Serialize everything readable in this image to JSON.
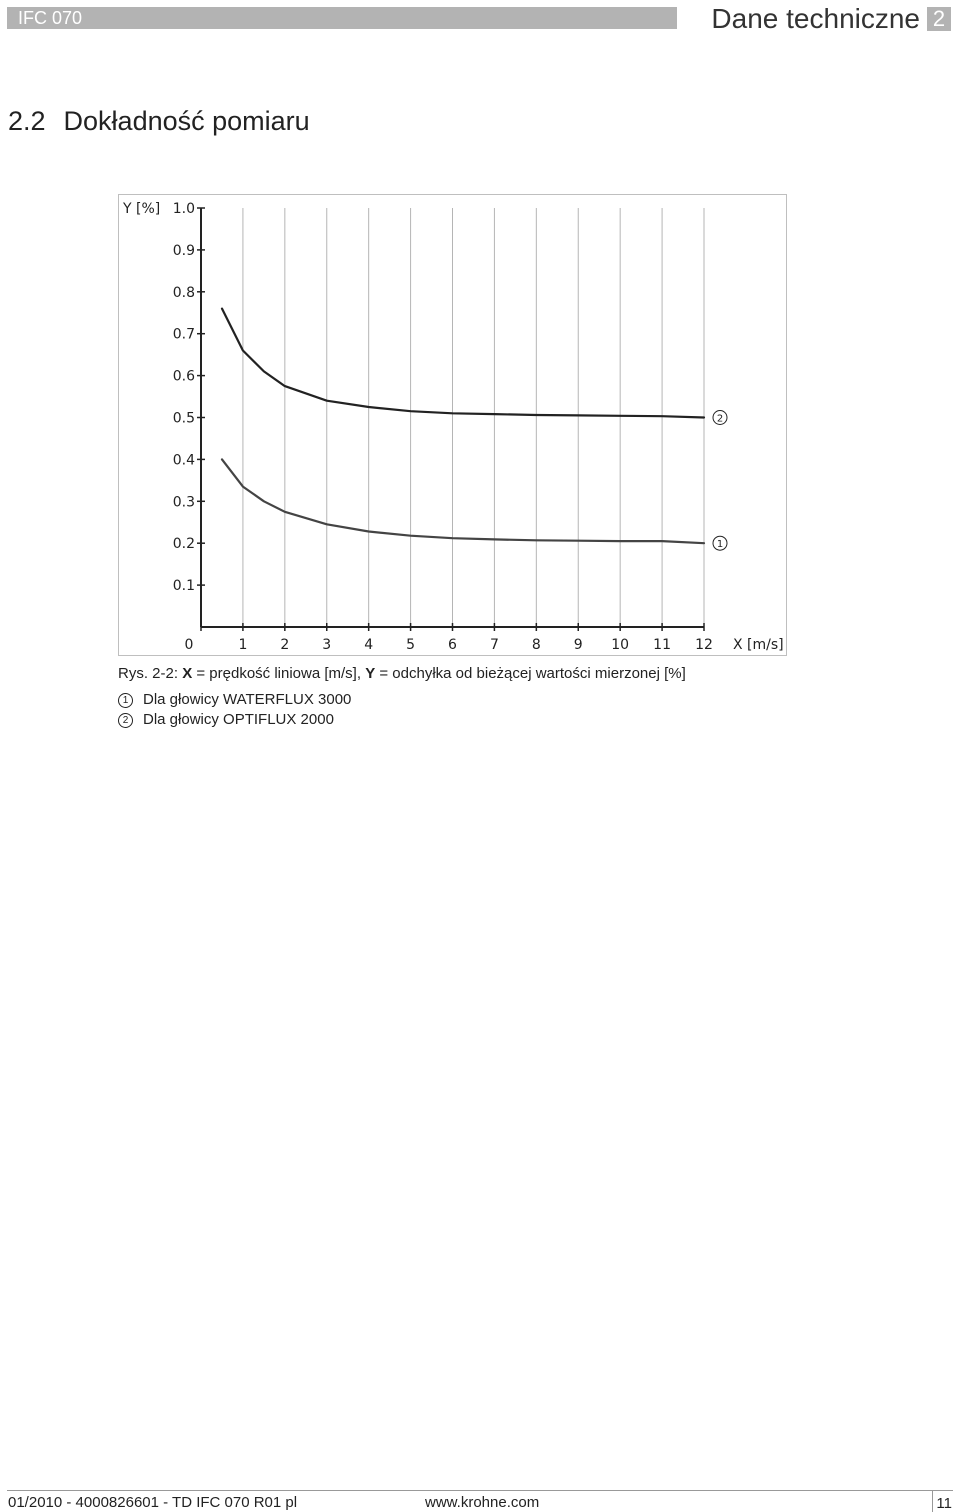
{
  "header": {
    "product": "IFC 070",
    "title": "Dane techniczne",
    "chapter": "2"
  },
  "section": {
    "number": "2.2",
    "title": "Dokładność pomiaru"
  },
  "chart_data": {
    "type": "line",
    "xlabel": "X [m/s]",
    "ylabel": "Y [%]",
    "xlim": [
      0,
      12
    ],
    "ylim": [
      0,
      1.0
    ],
    "x_ticks": [
      "0",
      "1",
      "2",
      "3",
      "4",
      "5",
      "6",
      "7",
      "8",
      "9",
      "10",
      "11",
      "12"
    ],
    "y_ticks": [
      "0.1",
      "0.2",
      "0.3",
      "0.4",
      "0.5",
      "0.6",
      "0.7",
      "0.8",
      "0.9",
      "1.0"
    ],
    "grid": true,
    "legend_placement": "right",
    "series": [
      {
        "name": "1",
        "color": "#444444",
        "x": [
          0.5,
          1,
          1.5,
          2,
          3,
          4,
          5,
          6,
          7,
          8,
          9,
          10,
          11,
          12
        ],
        "y": [
          0.4,
          0.335,
          0.3,
          0.275,
          0.245,
          0.228,
          0.218,
          0.212,
          0.209,
          0.207,
          0.206,
          0.205,
          0.205,
          0.2
        ]
      },
      {
        "name": "2",
        "color": "#222222",
        "x": [
          0.5,
          1,
          1.5,
          2,
          3,
          4,
          5,
          6,
          7,
          8,
          9,
          10,
          11,
          12
        ],
        "y": [
          0.76,
          0.66,
          0.61,
          0.575,
          0.54,
          0.525,
          0.515,
          0.51,
          0.508,
          0.506,
          0.505,
          0.504,
          0.503,
          0.5
        ]
      }
    ]
  },
  "caption": {
    "prefix": "Rys. 2-2: ",
    "x_key": "X",
    "x_text": " = prędkość liniowa [m/s], ",
    "y_key": "Y",
    "y_text": " = odchyłka od bieżącej wartości mierzonej [%]"
  },
  "legend": [
    {
      "num": "1",
      "label": "Dla głowicy WATERFLUX 3000"
    },
    {
      "num": "2",
      "label": "Dla głowicy OPTIFLUX 2000"
    }
  ],
  "footer": {
    "doc": "01/2010 - 4000826601 - TD IFC 070 R01 pl",
    "url": "www.krohne.com",
    "page": "11"
  }
}
